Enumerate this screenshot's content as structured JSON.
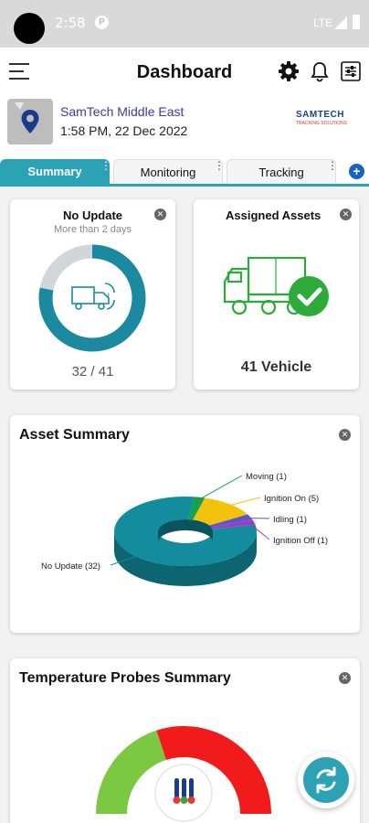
{
  "status_bar": {
    "time": "2:58",
    "notification_glyph": "P",
    "network": "LTE"
  },
  "app_bar": {
    "title": "Dashboard"
  },
  "company": {
    "name": "SamTech Middle East",
    "datetime": "1:58 PM, 22 Dec 2022",
    "brand": "SAMTECH",
    "brand_tagline": "TRACKING SOLUTIONS"
  },
  "tabs": [
    {
      "label": "Summary",
      "active": true
    },
    {
      "label": "Monitoring",
      "active": false
    },
    {
      "label": "Tracking",
      "active": false
    }
  ],
  "no_update_card": {
    "title": "No Update",
    "subtitle": "More than 2 days",
    "value": "32 / 41",
    "fraction": 0.78
  },
  "assigned_card": {
    "title": "Assigned Assets",
    "value": "41 Vehicle"
  },
  "asset_summary": {
    "title": "Asset Summary"
  },
  "chart_data": {
    "type": "pie",
    "style": "3d-donut",
    "categories": [
      "Moving",
      "Ignition On",
      "Idling",
      "Ignition Off",
      "No Update"
    ],
    "values": [
      1,
      5,
      1,
      1,
      32
    ],
    "labels": [
      "Moving (1)",
      "Ignition On (5)",
      "Idling (1)",
      "Ignition Off (1)",
      "No Update (32)"
    ],
    "colors": [
      "#1aa04a",
      "#f2c20c",
      "#5a56c4",
      "#9a3ec8",
      "#138c9e"
    ]
  },
  "temperature": {
    "title": "Temperature Probes Summary",
    "gauge_colors": [
      "#7bc943",
      "#f21b1b"
    ]
  },
  "colors": {
    "accent": "#2ca3b5",
    "no_update_ring": "#1b8aa0",
    "ring_track": "#d0d6da",
    "green": "#2eaa3a"
  }
}
